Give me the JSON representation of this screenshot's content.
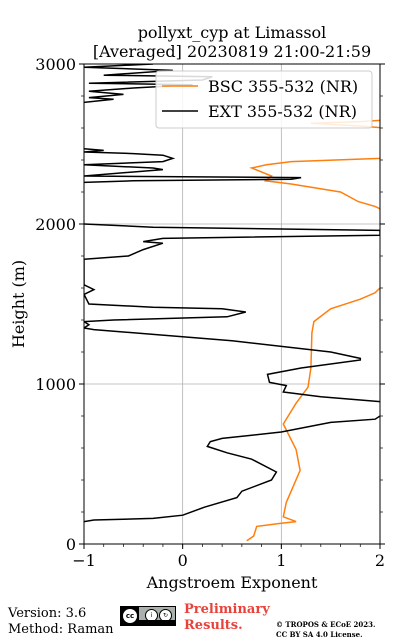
{
  "chart_data": {
    "type": "line",
    "title": "pollyxt_cyp at Limassol",
    "subtitle": "[Averaged] 20230819 21:00-21:59",
    "xlabel": "Angstroem Exponent",
    "ylabel": "Height (m)",
    "xlim": [
      -1,
      2
    ],
    "ylim": [
      0,
      3000
    ],
    "x_ticks": [
      -1,
      0,
      1,
      2
    ],
    "x_tick_labels": [
      "−1",
      "0",
      "1",
      "2"
    ],
    "y_ticks": [
      0,
      1000,
      2000,
      3000
    ],
    "y_tick_labels": [
      "0",
      "1000",
      "2000",
      "3000"
    ],
    "grid": true,
    "legend_position": "top-right",
    "series": [
      {
        "name": "BSC 355-532 (NR)",
        "color": "#ff7f0e",
        "points": [
          [
            0.65,
            20
          ],
          [
            0.72,
            50
          ],
          [
            0.75,
            110
          ],
          [
            1.0,
            130
          ],
          [
            1.15,
            140
          ],
          [
            1.02,
            170
          ],
          [
            1.05,
            260
          ],
          [
            1.12,
            360
          ],
          [
            1.19,
            460
          ],
          [
            1.15,
            590
          ],
          [
            1.02,
            750
          ],
          [
            1.15,
            880
          ],
          [
            1.27,
            980
          ],
          [
            1.3,
            1100
          ],
          [
            1.31,
            1320
          ],
          [
            1.33,
            1390
          ],
          [
            1.5,
            1470
          ],
          [
            1.8,
            1530
          ],
          [
            1.95,
            1570
          ],
          [
            2.0,
            1600
          ],
          [
            2.05,
            1640
          ]
        ],
        "points_upper": [
          [
            2.05,
            2080
          ],
          [
            1.95,
            2110
          ],
          [
            1.78,
            2140
          ],
          [
            1.6,
            2200
          ],
          [
            1.1,
            2250
          ],
          [
            0.84,
            2270
          ],
          [
            0.9,
            2300
          ],
          [
            0.7,
            2350
          ],
          [
            0.85,
            2370
          ],
          [
            1.1,
            2390
          ],
          [
            2.0,
            2410
          ],
          [
            2.05,
            2420
          ]
        ],
        "points_top": [
          [
            2.05,
            2600
          ],
          [
            1.85,
            2610
          ],
          [
            1.3,
            2630
          ],
          [
            1.8,
            2640
          ],
          [
            2.05,
            2650
          ]
        ]
      },
      {
        "name": "EXT 355-532 (NR)",
        "color": "#000000",
        "points": [
          [
            -1.0,
            140
          ],
          [
            -0.9,
            150
          ],
          [
            -0.3,
            160
          ],
          [
            0.0,
            180
          ],
          [
            0.22,
            230
          ],
          [
            0.55,
            290
          ],
          [
            0.6,
            330
          ],
          [
            0.9,
            400
          ],
          [
            0.95,
            450
          ],
          [
            0.7,
            530
          ],
          [
            0.45,
            570
          ],
          [
            0.25,
            610
          ],
          [
            0.28,
            640
          ],
          [
            0.4,
            660
          ],
          [
            0.7,
            680
          ],
          [
            1.0,
            700
          ],
          [
            1.5,
            760
          ],
          [
            1.95,
            780
          ],
          [
            2.0,
            800
          ],
          [
            2.05,
            810
          ],
          [
            2.0,
            890
          ],
          [
            1.4,
            920
          ],
          [
            1.02,
            950
          ],
          [
            1.05,
            990
          ],
          [
            0.88,
            1010
          ],
          [
            0.86,
            1060
          ],
          [
            1.2,
            1100
          ],
          [
            1.8,
            1150
          ],
          [
            1.8,
            1160
          ],
          [
            1.5,
            1200
          ],
          [
            0.5,
            1270
          ],
          [
            -0.9,
            1340
          ],
          [
            -1.0,
            1350
          ],
          [
            -0.95,
            1370
          ],
          [
            -1.0,
            1390
          ],
          [
            -0.7,
            1400
          ],
          [
            0.45,
            1420
          ],
          [
            0.64,
            1450
          ],
          [
            0.4,
            1470
          ],
          [
            -0.3,
            1480
          ],
          [
            -0.95,
            1500
          ],
          [
            -1.0,
            1560
          ],
          [
            -0.9,
            1590
          ],
          [
            -1.0,
            1620
          ],
          [
            -1.0,
            1780
          ],
          [
            -0.55,
            1800
          ],
          [
            -0.4,
            1840
          ],
          [
            -0.2,
            1880
          ],
          [
            -0.4,
            1890
          ],
          [
            -0.2,
            1910
          ],
          [
            2.0,
            1930
          ],
          [
            2.0,
            1960
          ],
          [
            -0.3,
            1980
          ],
          [
            -1.0,
            2000
          ]
        ],
        "points_upper": [
          [
            -1.0,
            2260
          ],
          [
            -0.5,
            2270
          ],
          [
            1.1,
            2280
          ],
          [
            1.2,
            2290
          ],
          [
            -1.0,
            2300
          ],
          [
            -0.2,
            2340
          ],
          [
            -0.3,
            2350
          ],
          [
            -1.0,
            2370
          ],
          [
            -0.2,
            2390
          ],
          [
            -0.1,
            2410
          ],
          [
            -0.2,
            2430
          ],
          [
            -0.5,
            2440
          ],
          [
            -1.0,
            2450
          ],
          [
            -0.8,
            2460
          ],
          [
            -1.0,
            2470
          ]
        ],
        "points_top": [
          [
            -1.0,
            2760
          ],
          [
            -0.7,
            2780
          ],
          [
            -0.95,
            2790
          ],
          [
            -0.6,
            2810
          ],
          [
            -0.95,
            2830
          ],
          [
            -0.5,
            2850
          ],
          [
            0.1,
            2870
          ],
          [
            -0.95,
            2880
          ],
          [
            0.2,
            2900
          ],
          [
            0.3,
            2920
          ],
          [
            -0.8,
            2930
          ],
          [
            -0.1,
            2960
          ],
          [
            -1.0,
            2980
          ],
          [
            -0.3,
            3000
          ]
        ]
      }
    ]
  },
  "footer": {
    "version": "Version: 3.6",
    "method": "Method: Raman",
    "preliminary_line1": "Preliminary",
    "preliminary_line2": "Results.",
    "license_line1": "© TROPOS & ECoE 2023.",
    "license_line2": "CC BY SA 4.0 License."
  }
}
